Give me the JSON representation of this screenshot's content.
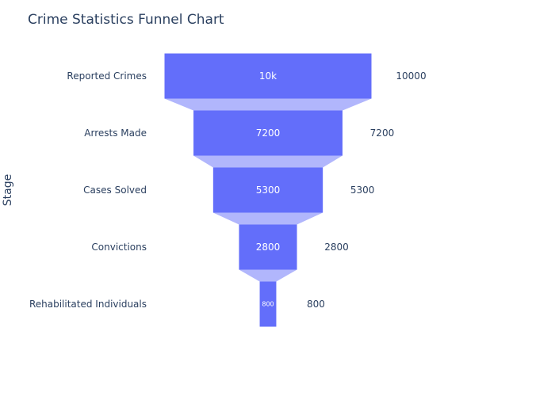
{
  "chart_data": {
    "type": "funnel",
    "title": "Crime Statistics Funnel Chart",
    "ylabel": "Stage",
    "categories": [
      "Reported Crimes",
      "Arrests Made",
      "Cases Solved",
      "Convictions",
      "Rehabilitated Individuals"
    ],
    "values": [
      10000,
      7200,
      5300,
      2800,
      800
    ],
    "inside_labels": [
      "10k",
      "7200",
      "5300",
      "2800",
      "800"
    ],
    "outside_labels": [
      "10000",
      "7200",
      "5300",
      "2800",
      "800"
    ],
    "colors": {
      "bar": "#636efa",
      "connector": "#b1b6fc",
      "text": "#2a3f5f"
    }
  }
}
